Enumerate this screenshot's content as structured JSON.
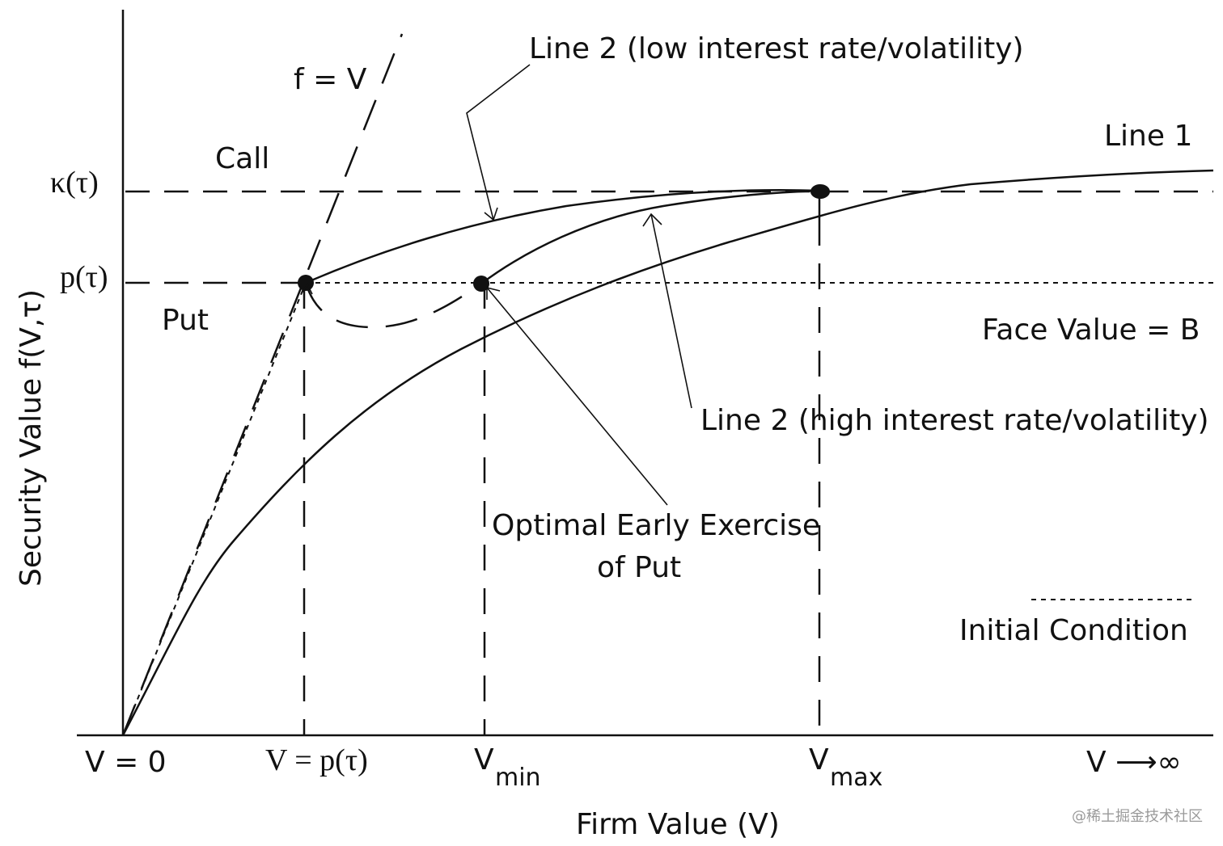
{
  "labels": {
    "y_axis": "Security Value  f(V,τ)",
    "x_axis": "Firm Value (V)",
    "kappa": "κ(τ)",
    "p_tau": "p(τ)",
    "f_eq_v": "f = V",
    "call": "Call",
    "put": "Put",
    "line1": "Line 1",
    "line2_low": "Line 2 (low interest rate/volatility)",
    "line2_high": "Line 2 (high interest rate/volatility)",
    "face_value": "Face Value = B",
    "optimal_line1": "Optimal Early Exercise",
    "optimal_line2": "of Put",
    "initial_condition": "Initial Condition"
  },
  "ticks": {
    "v0": "V = 0",
    "vp": "V = p(τ)",
    "vmin_main": "V",
    "vmin_sub": "min",
    "vmax_main": "V",
    "vmax_sub": "max",
    "vinf": "V ⟶∞"
  },
  "watermark": "@稀土掘金技术社区"
}
